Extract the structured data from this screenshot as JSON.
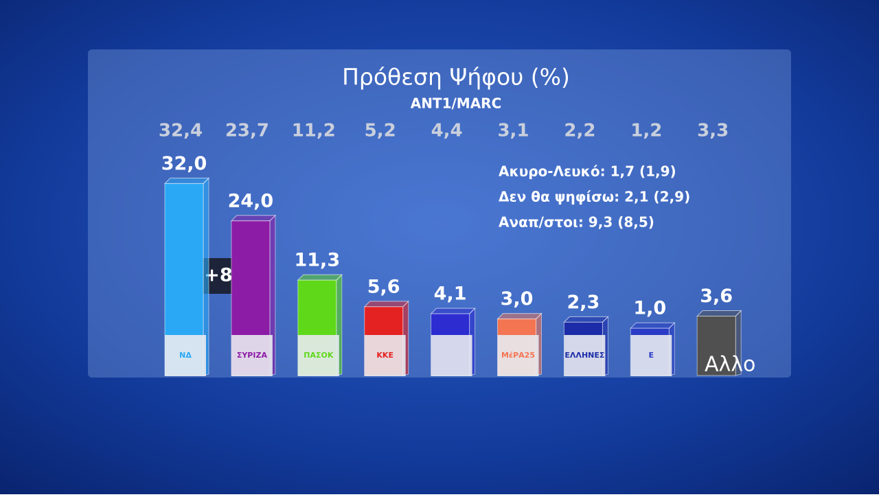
{
  "chart_data": {
    "type": "bar",
    "title": "Πρόθεση Ψήφου (%)",
    "subtitle": "ANT1/MARC",
    "categories": [
      "ΝΔ",
      "ΣΥΡΙΖΑ",
      "ΠΑΣΟΚ",
      "ΚΚΕ",
      null,
      "ΜέΡΑ25",
      "ΕΛΛΗΝΕΣ",
      "Ε",
      "Αλλο"
    ],
    "values": [
      32.0,
      24.0,
      11.3,
      5.6,
      4.1,
      3.0,
      2.3,
      1.0,
      3.6
    ],
    "value_labels": [
      "32,0",
      "24,0",
      "11,3",
      "5,6",
      "4,1",
      "3,0",
      "2,3",
      "1,0",
      "3,6"
    ],
    "previous_values": [
      32.4,
      23.7,
      11.2,
      5.2,
      4.4,
      3.1,
      2.2,
      1.2,
      3.3
    ],
    "previous_value_labels": [
      "32,4",
      "23,7",
      "11,2",
      "5,2",
      "4,4",
      "3,1",
      "2,2",
      "1,2",
      "3,3"
    ],
    "colors": [
      "#2aa8f6",
      "#8c1ca6",
      "#5fd81a",
      "#e52222",
      "#2c2cd0",
      "#f47552",
      "#1c2ca8",
      "#2a3cc6",
      "#505050"
    ],
    "annotations": [
      "+8",
      "Ακυρο-Λευκό: 1,7 (1,9)",
      "Δεν θα ψηφίσω: 2,1 (2,9)",
      "Αναπ/στοι: 9,3 (8,5)"
    ]
  }
}
